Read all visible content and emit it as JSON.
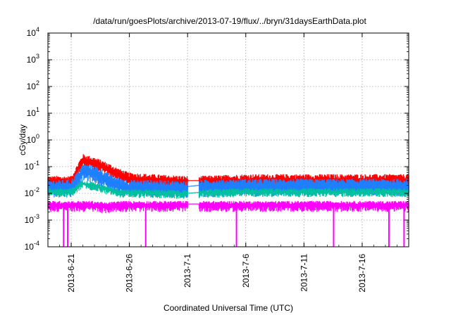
{
  "chart_data": {
    "type": "line",
    "title": "/data/run/goesPlots/archive/2013-07-19/flux/../bryn/31daysEarthData.plot",
    "xlabel": "Coordinated Universal Time (UTC)",
    "ylabel": "cGy/day",
    "y_scale": "log",
    "ylim": [
      0.0001,
      10000
    ],
    "y_ticks": [
      {
        "base": "10",
        "exp": "-4"
      },
      {
        "base": "10",
        "exp": "-3"
      },
      {
        "base": "10",
        "exp": "-2"
      },
      {
        "base": "10",
        "exp": "-1"
      },
      {
        "base": "10",
        "exp": "0"
      },
      {
        "base": "10",
        "exp": "1"
      },
      {
        "base": "10",
        "exp": "2"
      },
      {
        "base": "10",
        "exp": "3"
      },
      {
        "base": "10",
        "exp": "4"
      }
    ],
    "xlim": [
      "2013-06-19",
      "2013-07-20"
    ],
    "x_ticks": [
      "2013-6-21",
      "2013-6-26",
      "2013-7-1",
      "2013-7-6",
      "2013-7-11",
      "2013-7-16"
    ],
    "grid": true,
    "data_gap": [
      "2013-07-01",
      "2013-07-02"
    ],
    "series": [
      {
        "color": "#ff0000",
        "x": [
          "2013-06-19",
          "2013-06-21",
          "2013-06-22",
          "2013-06-23",
          "2013-06-24",
          "2013-06-25",
          "2013-06-26",
          "2013-06-28",
          "2013-07-01",
          "2013-07-02",
          "2013-07-06",
          "2013-07-11",
          "2013-07-16",
          "2013-07-20"
        ],
        "values": [
          0.03,
          0.03,
          0.2,
          0.15,
          0.1,
          0.06,
          0.04,
          0.035,
          0.03,
          0.03,
          0.035,
          0.035,
          0.035,
          0.035
        ]
      },
      {
        "color": "#1e7fff",
        "x": [
          "2013-06-19",
          "2013-06-21",
          "2013-06-22",
          "2013-06-23",
          "2013-06-24",
          "2013-06-25",
          "2013-06-26",
          "2013-06-28",
          "2013-07-01",
          "2013-07-02",
          "2013-07-06",
          "2013-07-11",
          "2013-07-16",
          "2013-07-20"
        ],
        "values": [
          0.02,
          0.02,
          0.08,
          0.07,
          0.04,
          0.025,
          0.02,
          0.02,
          0.018,
          0.02,
          0.022,
          0.022,
          0.022,
          0.022
        ]
      },
      {
        "color": "#00c0a0",
        "x": [
          "2013-06-19",
          "2013-06-21",
          "2013-06-22",
          "2013-06-23",
          "2013-06-24",
          "2013-06-25",
          "2013-06-26",
          "2013-06-28",
          "2013-07-01",
          "2013-07-02",
          "2013-07-06",
          "2013-07-11",
          "2013-07-16",
          "2013-07-20"
        ],
        "values": [
          0.012,
          0.012,
          0.025,
          0.02,
          0.015,
          0.012,
          0.011,
          0.011,
          0.01,
          0.011,
          0.012,
          0.012,
          0.012,
          0.012
        ]
      },
      {
        "color": "#ff00ff",
        "x": [
          "2013-06-19",
          "2013-06-21",
          "2013-06-22",
          "2013-06-23",
          "2013-06-24",
          "2013-06-25",
          "2013-06-26",
          "2013-06-28",
          "2013-07-01",
          "2013-07-02",
          "2013-07-06",
          "2013-07-11",
          "2013-07-16",
          "2013-07-20"
        ],
        "values": [
          0.004,
          0.004,
          0.004,
          0.004,
          0.0035,
          0.004,
          0.004,
          0.004,
          0.004,
          0.004,
          0.004,
          0.004,
          0.004,
          0.004
        ]
      }
    ],
    "drops_to_floor": [
      "2013-06-20",
      "2013-06-20",
      "2013-06-27",
      "2013-07-05",
      "2013-07-13",
      "2013-07-18",
      "2013-07-19"
    ]
  }
}
